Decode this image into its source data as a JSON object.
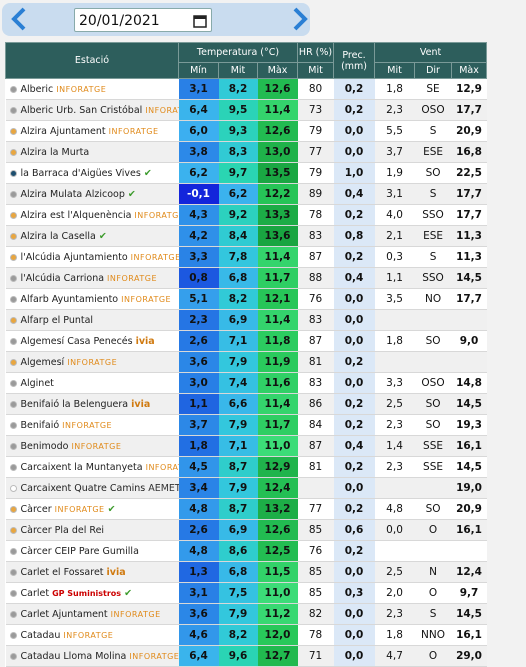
{
  "header": {
    "date": "20/01/2021"
  },
  "table": {
    "group_headers": [
      "Estació",
      "Temperatura (°C)",
      "HR (%)",
      "Prec. (mm)",
      "Vent"
    ],
    "sub_headers": [
      "Mín",
      "Mit",
      "Màx",
      "Mit",
      "Mit",
      "Dir",
      "Màx"
    ],
    "rows": [
      {
        "name": "Alberic",
        "tag": "INFORATGE",
        "verified": false,
        "status_color": "#9a9a9a",
        "min": "3,1",
        "mit": "8,2",
        "max": "12,6",
        "hr": "80",
        "prec": "0,2",
        "wmit": "1,8",
        "dir": "SE",
        "wmax": "12,9"
      },
      {
        "name": "Alberic Urb. San Cristóbal",
        "tag": "INFORATGE",
        "verified": false,
        "status_color": "#9a9a9a",
        "min": "6,4",
        "mit": "9,5",
        "max": "11,4",
        "hr": "73",
        "prec": "0,2",
        "wmit": "2,3",
        "dir": "OSO",
        "wmax": "17,7"
      },
      {
        "name": "Alzira Ajuntament",
        "tag": "INFORATGE",
        "verified": false,
        "status_color": "#e8a640",
        "min": "6,0",
        "mit": "9,3",
        "max": "12,6",
        "hr": "79",
        "prec": "0,0",
        "wmit": "5,5",
        "dir": "S",
        "wmax": "20,9"
      },
      {
        "name": "Alzira la Murta",
        "tag": null,
        "verified": false,
        "status_color": "#e8a640",
        "min": "3,8",
        "mit": "8,3",
        "max": "13,0",
        "hr": "77",
        "prec": "0,0",
        "wmit": "3,7",
        "dir": "ESE",
        "wmax": "16,8"
      },
      {
        "name": "la Barraca d'Aigües Vives",
        "tag": null,
        "verified": true,
        "status_color": "#1d4e6e",
        "min": "6,2",
        "mit": "9,7",
        "max": "13,5",
        "hr": "79",
        "prec": "1,0",
        "wmit": "1,9",
        "dir": "SO",
        "wmax": "22,5"
      },
      {
        "name": "Alzira Mulata Alzicoop",
        "tag": null,
        "verified": true,
        "status_color": "#9a9a9a",
        "min": "-0,1",
        "mit": "6,2",
        "max": "12,2",
        "hr": "89",
        "prec": "0,4",
        "wmit": "3,1",
        "dir": "S",
        "wmax": "17,7"
      },
      {
        "name": "Alzira est l'Alquenència",
        "tag": "INFORATGE",
        "verified": false,
        "status_color": "#e8a640",
        "min": "4,3",
        "mit": "9,2",
        "max": "13,3",
        "hr": "78",
        "prec": "0,2",
        "wmit": "4,0",
        "dir": "SSO",
        "wmax": "17,7"
      },
      {
        "name": "Alzira la Casella",
        "tag": null,
        "verified": true,
        "status_color": "#e8a640",
        "min": "4,2",
        "mit": "8,4",
        "max": "13,6",
        "hr": "83",
        "prec": "0,8",
        "wmit": "2,1",
        "dir": "ESE",
        "wmax": "11,3"
      },
      {
        "name": "l'Alcúdia Ajuntamiento",
        "tag": "INFORATGE",
        "verified": false,
        "status_color": "#e8a640",
        "min": "3,3",
        "mit": "7,8",
        "max": "11,4",
        "hr": "87",
        "prec": "0,2",
        "wmit": "0,3",
        "dir": "S",
        "wmax": "11,3"
      },
      {
        "name": "l'Alcúdia Carriona",
        "tag": "INFORATGE",
        "verified": false,
        "status_color": "#9a9a9a",
        "min": "0,8",
        "mit": "6,8",
        "max": "11,7",
        "hr": "88",
        "prec": "0,4",
        "wmit": "1,1",
        "dir": "SSO",
        "wmax": "14,5"
      },
      {
        "name": "Alfarb Ayuntamiento",
        "tag": "INFORATGE",
        "verified": false,
        "status_color": "#9a9a9a",
        "min": "5,1",
        "mit": "8,2",
        "max": "12,1",
        "hr": "76",
        "prec": "0,0",
        "wmit": "3,5",
        "dir": "NO",
        "wmax": "17,7"
      },
      {
        "name": "Alfarp el Puntal",
        "tag": null,
        "verified": false,
        "status_color": "#e8a640",
        "min": "2,3",
        "mit": "6,9",
        "max": "11,4",
        "hr": "83",
        "prec": "0,0",
        "wmit": null,
        "dir": null,
        "wmax": null
      },
      {
        "name": "Algemesí  Casa Penecés",
        "tag": "ivia",
        "verified": false,
        "status_color": "#9a9a9a",
        "min": "2,6",
        "mit": "7,1",
        "max": "11,8",
        "hr": "87",
        "prec": "0,0",
        "wmit": "1,8",
        "dir": "SO",
        "wmax": "9,0"
      },
      {
        "name": "Algemesí",
        "tag": "INFORATGE",
        "verified": false,
        "status_color": "#e8a640",
        "min": "3,6",
        "mit": "7,9",
        "max": "11,9",
        "hr": "81",
        "prec": "0,2",
        "wmit": null,
        "dir": null,
        "wmax": null
      },
      {
        "name": "Alginet",
        "tag": null,
        "verified": false,
        "status_color": "#9a9a9a",
        "min": "3,0",
        "mit": "7,4",
        "max": "11,6",
        "hr": "83",
        "prec": "0,0",
        "wmit": "3,3",
        "dir": "OSO",
        "wmax": "14,8"
      },
      {
        "name": "Benifaió la Belenguera",
        "tag": "ivia",
        "verified": false,
        "status_color": "#9a9a9a",
        "min": "1,1",
        "mit": "6,6",
        "max": "11,4",
        "hr": "86",
        "prec": "0,2",
        "wmit": "2,5",
        "dir": "SO",
        "wmax": "14,5"
      },
      {
        "name": "Benifaió",
        "tag": "INFORATGE",
        "verified": false,
        "status_color": "#9a9a9a",
        "min": "3,7",
        "mit": "7,9",
        "max": "11,7",
        "hr": "84",
        "prec": "0,2",
        "wmit": "2,3",
        "dir": "SO",
        "wmax": "19,3"
      },
      {
        "name": "Benimodo",
        "tag": "INFORATGE",
        "verified": false,
        "status_color": "#9a9a9a",
        "min": "1,8",
        "mit": "7,1",
        "max": "11,0",
        "hr": "87",
        "prec": "0,4",
        "wmit": "1,4",
        "dir": "SSE",
        "wmax": "16,1"
      },
      {
        "name": "Carcaixent la Muntanyeta",
        "tag": "INFORATGE",
        "verified": false,
        "status_color": "#9a9a9a",
        "min": "4,5",
        "mit": "8,7",
        "max": "12,9",
        "hr": "81",
        "prec": "0,2",
        "wmit": "2,3",
        "dir": "SSE",
        "wmax": "14,5"
      },
      {
        "name": "Carcaixent Quatre Camins",
        "tag": "AEMET",
        "verified": false,
        "status_color": "#ffffff",
        "min": "3,4",
        "mit": "7,9",
        "max": "12,4",
        "hr": null,
        "prec": "0,0",
        "wmit": null,
        "dir": null,
        "wmax": "19,0"
      },
      {
        "name": "Càrcer",
        "tag": "INFORATGE",
        "verified": true,
        "status_color": "#e8a640",
        "min": "4,8",
        "mit": "8,7",
        "max": "13,2",
        "hr": "77",
        "prec": "0,2",
        "wmit": "4,8",
        "dir": "SO",
        "wmax": "20,9"
      },
      {
        "name": "Càrcer Pla del Rei",
        "tag": null,
        "verified": false,
        "status_color": "#e8a640",
        "min": "2,6",
        "mit": "6,9",
        "max": "12,6",
        "hr": "85",
        "prec": "0,6",
        "wmit": "0,0",
        "dir": "O",
        "wmax": "16,1"
      },
      {
        "name": "Càrcer CEIP Pare Gumilla",
        "tag": null,
        "verified": false,
        "status_color": "#9a9a9a",
        "min": "4,8",
        "mit": "8,6",
        "max": "12,5",
        "hr": "76",
        "prec": "0,2",
        "wmit": null,
        "dir": null,
        "wmax": null
      },
      {
        "name": "Carlet el Fossaret",
        "tag": "ivia",
        "verified": false,
        "status_color": "#9a9a9a",
        "min": "1,3",
        "mit": "6,8",
        "max": "11,5",
        "hr": "85",
        "prec": "0,0",
        "wmit": "2,5",
        "dir": "N",
        "wmax": "12,4"
      },
      {
        "name": "Carlet",
        "tag": "GP Suministros",
        "verified": true,
        "status_color": "#9a9a9a",
        "min": "3,1",
        "mit": "7,5",
        "max": "11,0",
        "hr": "85",
        "prec": "0,3",
        "wmit": "2,0",
        "dir": "O",
        "wmax": "9,7"
      },
      {
        "name": "Carlet Ajuntament",
        "tag": "INFORATGE",
        "verified": false,
        "status_color": "#9a9a9a",
        "min": "3,6",
        "mit": "7,9",
        "max": "11,2",
        "hr": "82",
        "prec": "0,0",
        "wmit": "2,3",
        "dir": "S",
        "wmax": "14,5"
      },
      {
        "name": "Catadau",
        "tag": "INFORATGE",
        "verified": false,
        "status_color": "#9a9a9a",
        "min": "4,6",
        "mit": "8,2",
        "max": "12,0",
        "hr": "78",
        "prec": "0,0",
        "wmit": "1,8",
        "dir": "NNO",
        "wmax": "16,1"
      },
      {
        "name": "Catadau Lloma Molina",
        "tag": "INFORATGE",
        "verified": false,
        "status_color": "#9a9a9a",
        "min": "6,4",
        "mit": "9,6",
        "max": "12,7",
        "hr": "71",
        "prec": "0,0",
        "wmit": "4,7",
        "dir": "O",
        "wmax": "29,0"
      }
    ]
  }
}
